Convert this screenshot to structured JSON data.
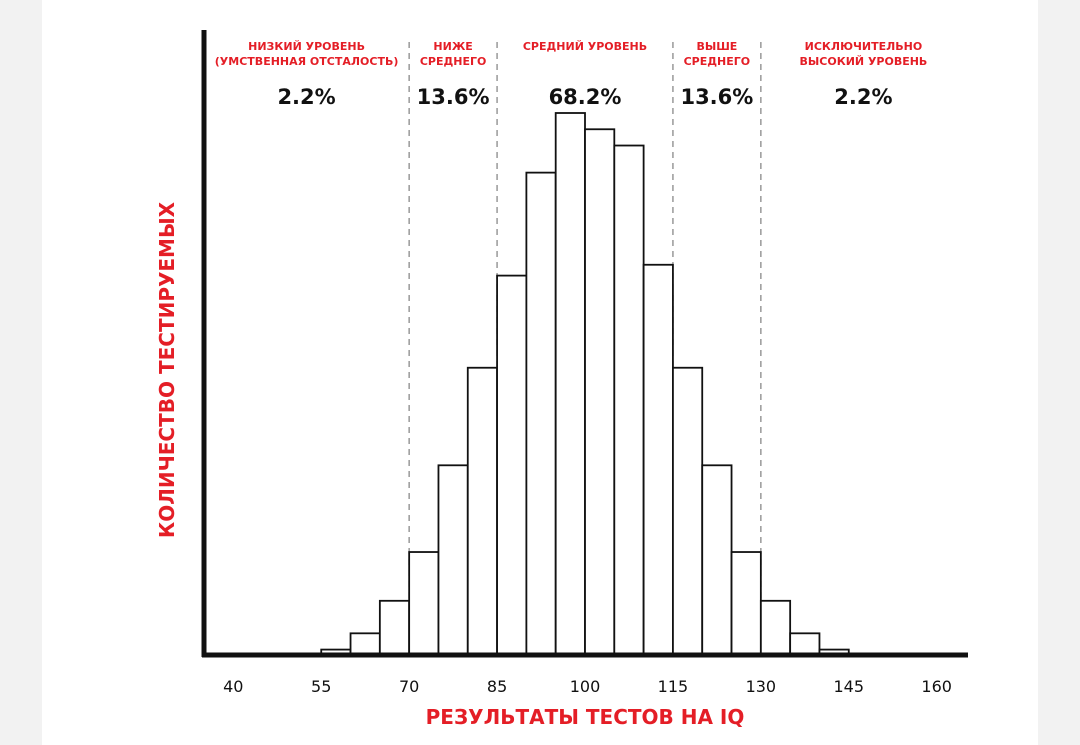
{
  "chart_data": {
    "type": "bar",
    "title": "",
    "xlabel": "РЕЗУЛЬТАТЫ ТЕСТОВ НА IQ",
    "ylabel": "КОЛИЧЕСТВО ТЕСТИРУЕМЫХ",
    "xlim": [
      35,
      165
    ],
    "ylim": [
      0,
      100
    ],
    "ticks": [
      40,
      55,
      70,
      85,
      100,
      115,
      130,
      145,
      160
    ],
    "bins": [
      {
        "start": 55,
        "end": 60,
        "value": 1
      },
      {
        "start": 60,
        "end": 65,
        "value": 4
      },
      {
        "start": 65,
        "end": 70,
        "value": 10
      },
      {
        "start": 70,
        "end": 75,
        "value": 19
      },
      {
        "start": 75,
        "end": 80,
        "value": 35
      },
      {
        "start": 80,
        "end": 85,
        "value": 53
      },
      {
        "start": 85,
        "end": 90,
        "value": 70
      },
      {
        "start": 90,
        "end": 95,
        "value": 89
      },
      {
        "start": 95,
        "end": 100,
        "value": 100
      },
      {
        "start": 100,
        "end": 105,
        "value": 97
      },
      {
        "start": 105,
        "end": 110,
        "value": 94
      },
      {
        "start": 110,
        "end": 115,
        "value": 72
      },
      {
        "start": 115,
        "end": 120,
        "value": 53
      },
      {
        "start": 120,
        "end": 125,
        "value": 35
      },
      {
        "start": 125,
        "end": 130,
        "value": 19
      },
      {
        "start": 130,
        "end": 135,
        "value": 10
      },
      {
        "start": 135,
        "end": 140,
        "value": 4
      },
      {
        "start": 140,
        "end": 145,
        "value": 1
      }
    ],
    "dividers": [
      70,
      85,
      115,
      130
    ],
    "regions": [
      {
        "x_center": 52.5,
        "label_lines": [
          "НИЗКИЙ УРОВЕНЬ",
          "(УМСТВЕННАЯ ОТСТАЛОСТЬ)"
        ],
        "percent": "2.2%"
      },
      {
        "x_center": 77.5,
        "label_lines": [
          "НИЖЕ",
          "СРЕДНЕГО"
        ],
        "percent": "13.6%"
      },
      {
        "x_center": 100,
        "label_lines": [
          "СРЕДНИЙ УРОВЕНЬ"
        ],
        "percent": "68.2%"
      },
      {
        "x_center": 122.5,
        "label_lines": [
          "ВЫШЕ",
          "СРЕДНЕГО"
        ],
        "percent": "13.6%"
      },
      {
        "x_center": 147.5,
        "label_lines": [
          "ИСКЛЮЧИТЕЛЬНО",
          "ВЫСОКИЙ УРОВЕНЬ"
        ],
        "percent": "2.2%"
      }
    ],
    "colors": {
      "bar_fill": "#ffffff",
      "bar_stroke": "#111111",
      "axis": "#111111",
      "divider": "#999999",
      "label_red": "#e41e26"
    }
  }
}
